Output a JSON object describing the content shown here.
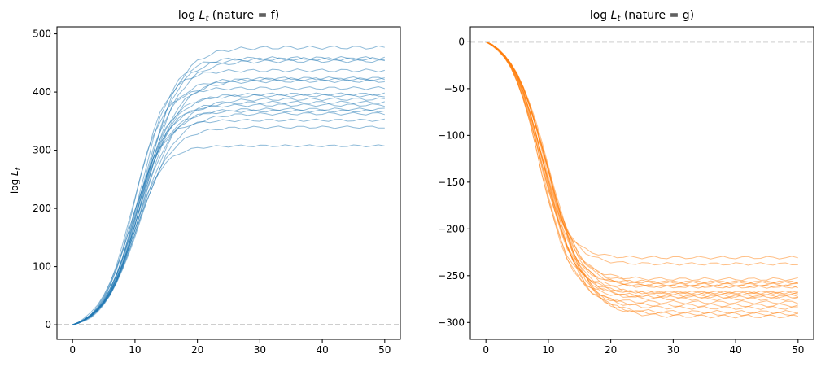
{
  "chart_data": [
    {
      "type": "line",
      "title_prefix": "log ",
      "title_var": "L",
      "title_sub": "t",
      "title_suffix": " (nature = f)",
      "ylabel_prefix": "log ",
      "ylabel_var": "L",
      "ylabel_sub": "t",
      "xlim": [
        -2.5,
        52.5
      ],
      "ylim": [
        -25,
        512
      ],
      "xticks": [
        0,
        10,
        20,
        30,
        40,
        50
      ],
      "yticks": [
        0,
        100,
        200,
        300,
        400,
        500
      ],
      "reference_y": 0,
      "color": "#1f77b4",
      "series_count": 20,
      "model": {
        "form": "logistic",
        "x": [
          0,
          50
        ],
        "plateaus": [
          313,
          348,
          360,
          372,
          376,
          378,
          385,
          395,
          398,
          402,
          405,
          415,
          428,
          431,
          434,
          445,
          463,
          465,
          466,
          485
        ],
        "midpoints": [
          9.6,
          10.3,
          9.3,
          10.8,
          9.9,
          10.5,
          10.1,
          9.7,
          11.0,
          10.2,
          10.6,
          9.5,
          10.9,
          10.4,
          11.2,
          10.0,
          11.3,
          11.1,
          10.7,
          11.5
        ],
        "rates": [
          0.42,
          0.36,
          0.4,
          0.34,
          0.38,
          0.37,
          0.39,
          0.35,
          0.33,
          0.38,
          0.36,
          0.41,
          0.35,
          0.37,
          0.33,
          0.4,
          0.34,
          0.36,
          0.38,
          0.35
        ]
      }
    },
    {
      "type": "line",
      "title_prefix": "log ",
      "title_var": "L",
      "title_sub": "t",
      "title_suffix": " (nature = g)",
      "xlim": [
        -2.5,
        52.5
      ],
      "ylim": [
        -318,
        16
      ],
      "xticks": [
        0,
        10,
        20,
        30,
        40,
        50
      ],
      "yticks": [
        0,
        -50,
        -100,
        -150,
        -200,
        -250,
        -300
      ],
      "reference_y": 0,
      "color": "#ff7f0e",
      "series_count": 20,
      "model": {
        "form": "logistic",
        "x": [
          0,
          50
        ],
        "plateaus": [
          -238,
          -245,
          -262,
          -264,
          -265,
          -267,
          -268,
          -270,
          -275,
          -277,
          -278,
          -279,
          -280,
          -283,
          -286,
          -290,
          -293,
          -297,
          -300,
          -303
        ],
        "midpoints": [
          8.2,
          8.6,
          9.0,
          8.8,
          9.4,
          9.1,
          8.5,
          9.6,
          9.2,
          8.9,
          9.7,
          9.3,
          8.7,
          9.8,
          9.0,
          9.5,
          10.0,
          9.9,
          10.2,
          10.4
        ],
        "rates": [
          0.42,
          0.4,
          0.38,
          0.41,
          0.37,
          0.39,
          0.43,
          0.36,
          0.4,
          0.38,
          0.35,
          0.39,
          0.41,
          0.36,
          0.4,
          0.37,
          0.35,
          0.36,
          0.34,
          0.33
        ]
      }
    }
  ]
}
